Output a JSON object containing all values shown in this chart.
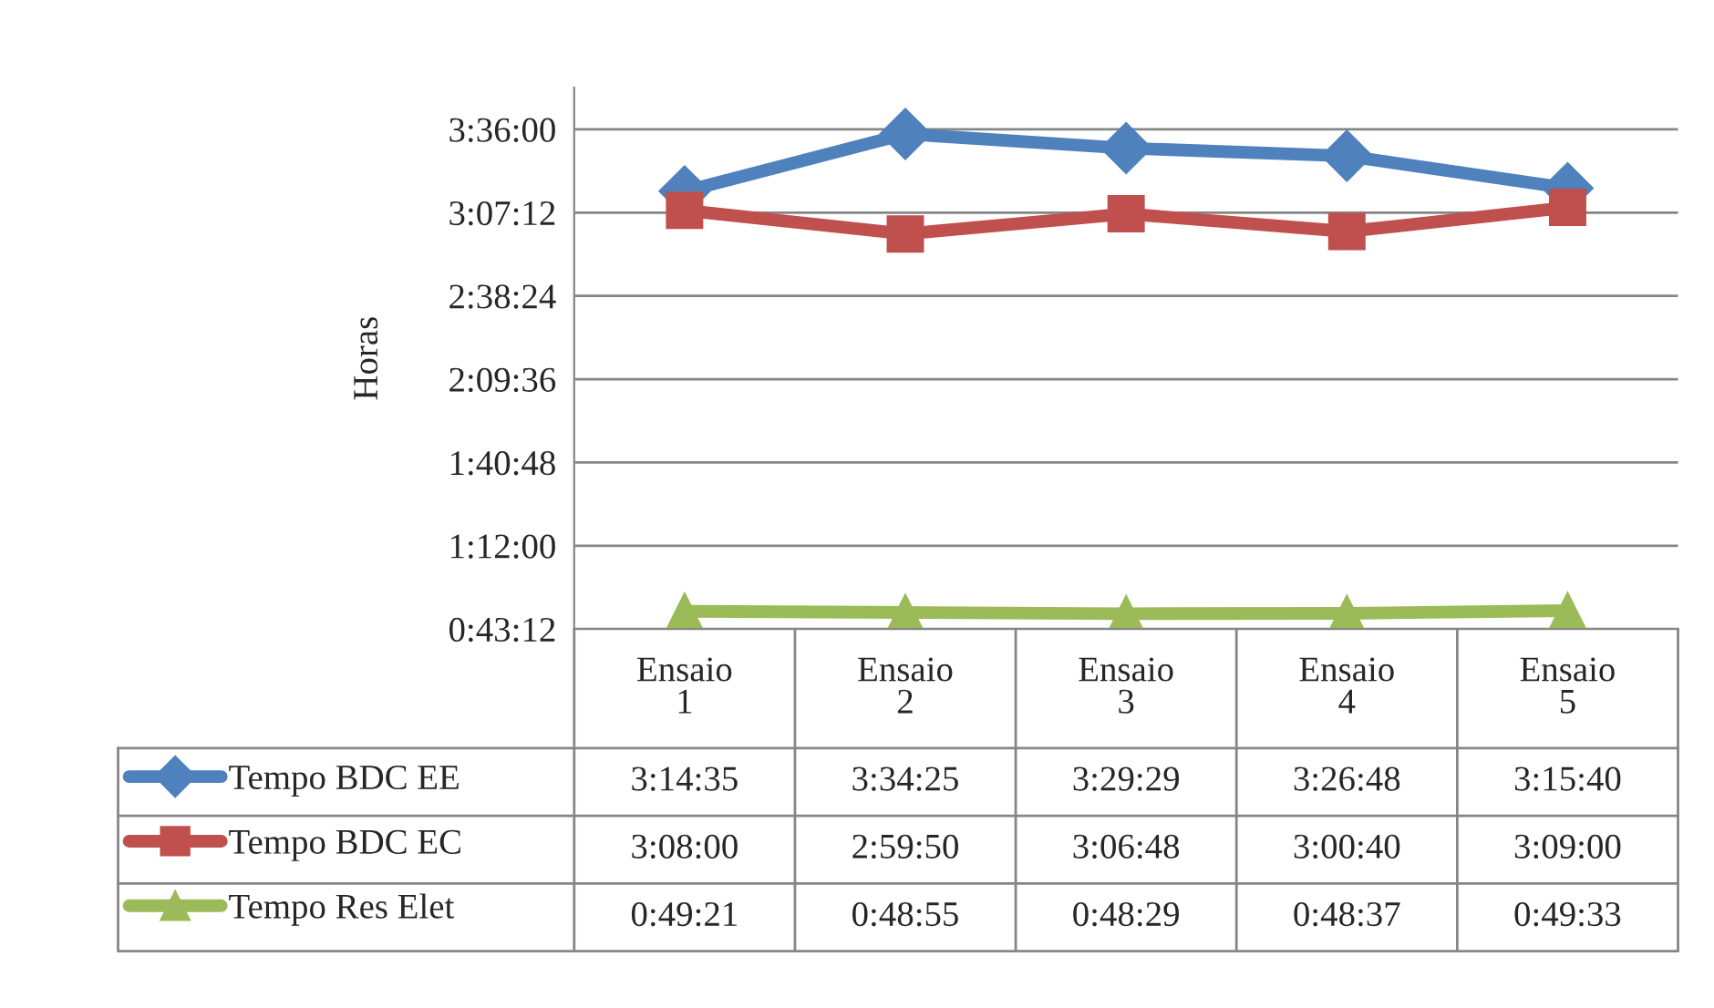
{
  "chart_data": {
    "type": "line",
    "ylabel": "Horas",
    "categories": [
      "Ensaio 1",
      "Ensaio 2",
      "Ensaio 3",
      "Ensaio 4",
      "Ensaio 5"
    ],
    "series": [
      {
        "name": "Tempo BDC EE",
        "color": "#4f81bd",
        "marker": "diamond",
        "values": [
          3.2431,
          3.5736,
          3.4914,
          3.4467,
          3.2611
        ],
        "value_labels": [
          "3:14:35",
          "3:34:25",
          "3:29:29",
          "3:26:48",
          "3:15:40"
        ]
      },
      {
        "name": "Tempo BDC EC",
        "color": "#c0504d",
        "marker": "square",
        "values": [
          3.1333,
          2.9972,
          3.1133,
          3.0111,
          3.15
        ],
        "value_labels": [
          "3:08:00",
          "2:59:50",
          "3:06:48",
          "3:00:40",
          "3:09:00"
        ]
      },
      {
        "name": "Tempo Res Elet",
        "color": "#9bbb59",
        "marker": "triangle",
        "values": [
          0.8225,
          0.8153,
          0.8081,
          0.8103,
          0.8258
        ],
        "value_labels": [
          "0:49:21",
          "0:48:55",
          "0:48:29",
          "0:48:37",
          "0:49:33"
        ]
      }
    ],
    "ylim": [
      0.72,
      3.84
    ],
    "yticks": [
      {
        "value": 0.72,
        "label": "0:43:12"
      },
      {
        "value": 1.2,
        "label": "1:12:00"
      },
      {
        "value": 1.68,
        "label": "1:40:48"
      },
      {
        "value": 2.16,
        "label": "2:09:36"
      },
      {
        "value": 2.64,
        "label": "2:38:24"
      },
      {
        "value": 3.12,
        "label": "3:07:12"
      },
      {
        "value": 3.6,
        "label": "3:36:00"
      }
    ],
    "grid": "y",
    "legend": "bottom",
    "line_style": "solid"
  }
}
